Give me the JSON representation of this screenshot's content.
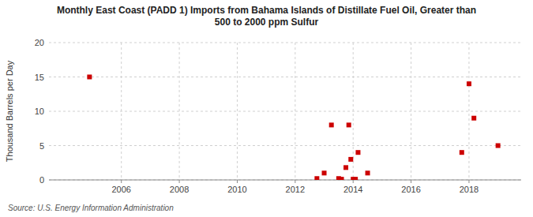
{
  "chart_data": {
    "type": "scatter",
    "title": "Monthly East Coast (PADD 1) Imports from Bahama Islands of Distillate Fuel Oil, Greater than\n500 to 2000 ppm Sulfur",
    "y_label": "Thousand Barrels per Day",
    "annotations": [
      "Source: U.S. Energy Information Administration"
    ],
    "x": [
      2004.9,
      2012.75,
      2013.0,
      2013.25,
      2013.5,
      2013.6,
      2013.75,
      2013.85,
      2013.92,
      2014.0,
      2014.08,
      2014.17,
      2014.5,
      2017.75,
      2018.0,
      2018.17,
      2019.0
    ],
    "values": [
      15,
      0.2,
      1.0,
      8,
      0.2,
      0.1,
      1.8,
      8,
      3,
      0.1,
      0.1,
      4,
      1,
      4,
      14,
      9,
      5
    ],
    "color": "#cc0000",
    "marker": "square",
    "xlim": [
      2003.5,
      2019.8
    ],
    "xticks": [
      2006,
      2008,
      2010,
      2012,
      2014,
      2016,
      2018
    ],
    "ylim": [
      0,
      20
    ],
    "yticks": [
      0,
      5,
      10,
      15,
      20
    ],
    "grid": true
  }
}
